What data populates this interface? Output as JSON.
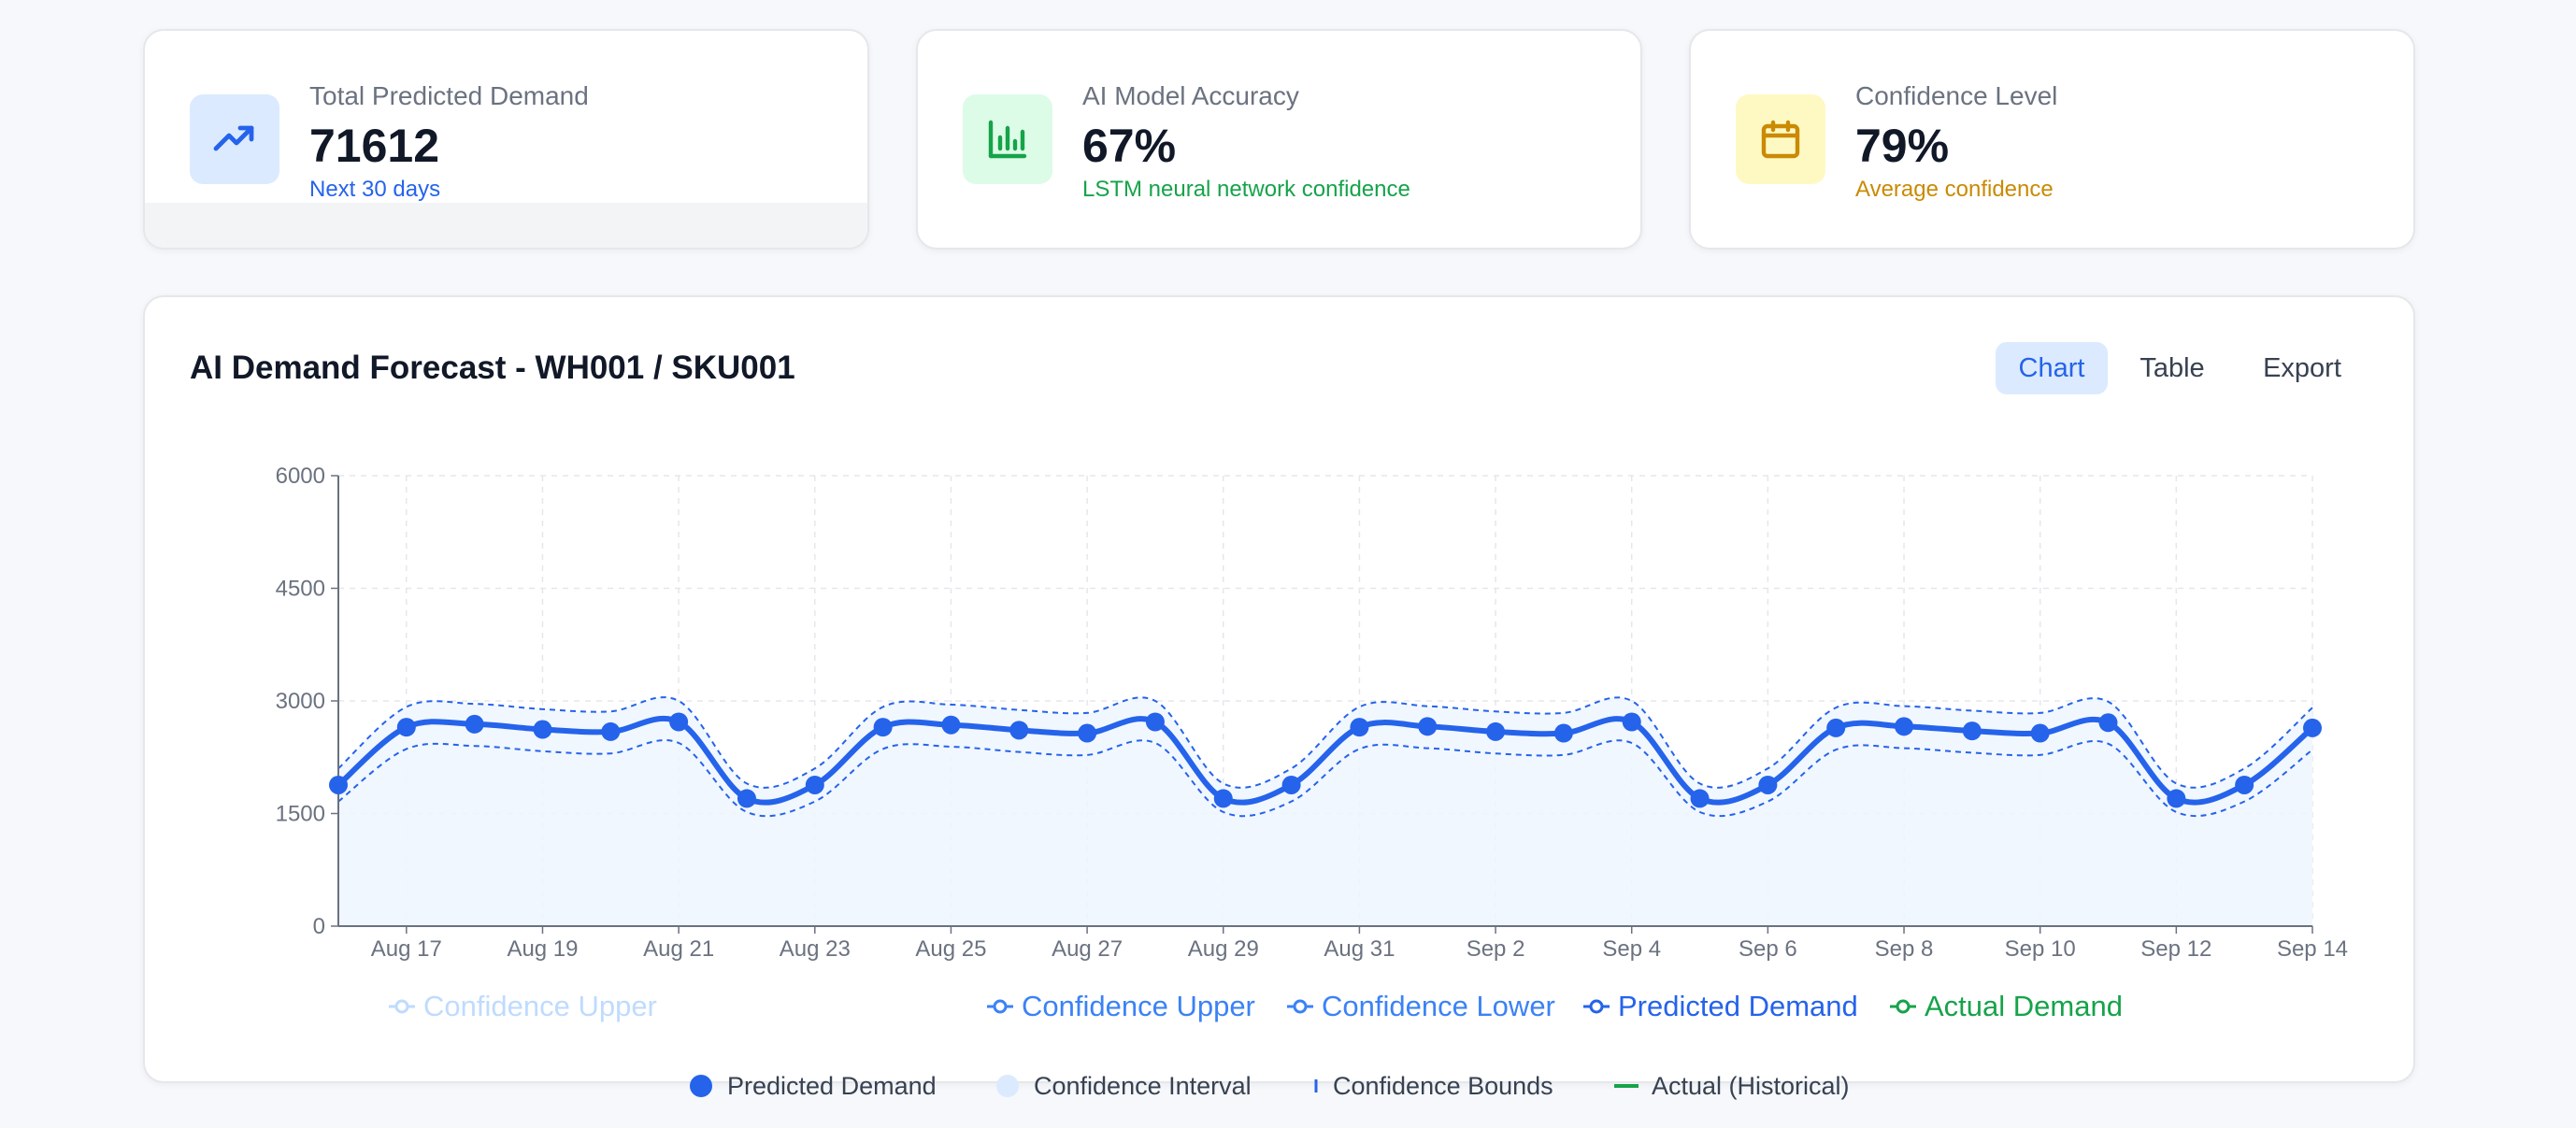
{
  "stats": [
    {
      "label": "Total Predicted Demand",
      "value": "71612",
      "sub": "Next 30 days",
      "icon": "trending-up-icon",
      "icon_bg": "#dbeafe",
      "icon_color": "#2563eb",
      "sub_color": "#2563eb"
    },
    {
      "label": "AI Model Accuracy",
      "value": "67%",
      "sub": "LSTM neural network confidence",
      "icon": "bar-chart-icon",
      "icon_bg": "#dcfce7",
      "icon_color": "#16a34a",
      "sub_color": "#16a34a"
    },
    {
      "label": "Confidence Level",
      "value": "79%",
      "sub": "Average confidence",
      "icon": "calendar-icon",
      "icon_bg": "#fef9c3",
      "icon_color": "#ca8a04",
      "sub_color": "#ca8a04"
    }
  ],
  "forecast": {
    "title": "AI Demand Forecast - WH001 / SKU001",
    "buttons": {
      "chart": "Chart",
      "table": "Table",
      "export": "Export"
    }
  },
  "chart_data": {
    "type": "line",
    "x": [
      "Aug 16",
      "Aug 17",
      "Aug 18",
      "Aug 19",
      "Aug 20",
      "Aug 21",
      "Aug 22",
      "Aug 23",
      "Aug 24",
      "Aug 25",
      "Aug 26",
      "Aug 27",
      "Aug 28",
      "Aug 29",
      "Aug 30",
      "Aug 31",
      "Sep 1",
      "Sep 2",
      "Sep 3",
      "Sep 4",
      "Sep 5",
      "Sep 6",
      "Sep 7",
      "Sep 8",
      "Sep 9",
      "Sep 10",
      "Sep 11",
      "Sep 12",
      "Sep 13",
      "Sep 14"
    ],
    "tick_labels": [
      "Aug 17",
      "Aug 19",
      "Aug 21",
      "Aug 23",
      "Aug 25",
      "Aug 27",
      "Aug 29",
      "Aug 31",
      "Sep 2",
      "Sep 4",
      "Sep 6",
      "Sep 8",
      "Sep 10",
      "Sep 12",
      "Sep 14"
    ],
    "ylim": [
      0,
      6000
    ],
    "yticks": [
      0,
      1500,
      3000,
      4500,
      6000
    ],
    "series": [
      {
        "name": "Predicted Demand",
        "color": "#2563eb",
        "values": [
          1880,
          2650,
          2690,
          2620,
          2590,
          2720,
          1700,
          1880,
          2650,
          2680,
          2610,
          2570,
          2720,
          1700,
          1880,
          2650,
          2660,
          2590,
          2570,
          2720,
          1700,
          1880,
          2640,
          2660,
          2600,
          2570,
          2710,
          1700,
          1880,
          2640
        ]
      },
      {
        "name": "Confidence Upper",
        "color": "#2563eb",
        "values": [
          2100,
          2920,
          2960,
          2890,
          2860,
          3000,
          1900,
          2100,
          2920,
          2950,
          2880,
          2840,
          3000,
          1900,
          2100,
          2920,
          2930,
          2860,
          2840,
          3000,
          1900,
          2100,
          2910,
          2930,
          2870,
          2840,
          2990,
          1900,
          2100,
          2910
        ]
      },
      {
        "name": "Confidence Lower",
        "color": "#2563eb",
        "values": [
          1660,
          2360,
          2400,
          2330,
          2300,
          2440,
          1520,
          1660,
          2360,
          2390,
          2320,
          2280,
          2440,
          1520,
          1660,
          2360,
          2370,
          2300,
          2280,
          2440,
          1520,
          1660,
          2350,
          2370,
          2310,
          2280,
          2430,
          1520,
          1660,
          2350
        ]
      }
    ],
    "legend_top": [
      {
        "label": "Confidence Upper",
        "color": "#bfdbfe"
      },
      {
        "label": "Confidence Upper",
        "color": "#3b82f6"
      },
      {
        "label": "Confidence Lower",
        "color": "#3b82f6"
      },
      {
        "label": "Predicted Demand",
        "color": "#2563eb"
      },
      {
        "label": "Actual Demand",
        "color": "#16a34a"
      }
    ],
    "legend_bottom": [
      {
        "label": "Predicted Demand",
        "marker": "dot",
        "color": "#2563eb"
      },
      {
        "label": "Confidence Interval",
        "marker": "dot",
        "color": "#dbeafe"
      },
      {
        "label": "Confidence Bounds",
        "marker": "tick",
        "color": "#2563eb"
      },
      {
        "label": "Actual (Historical)",
        "marker": "dash",
        "color": "#16a34a"
      }
    ]
  }
}
